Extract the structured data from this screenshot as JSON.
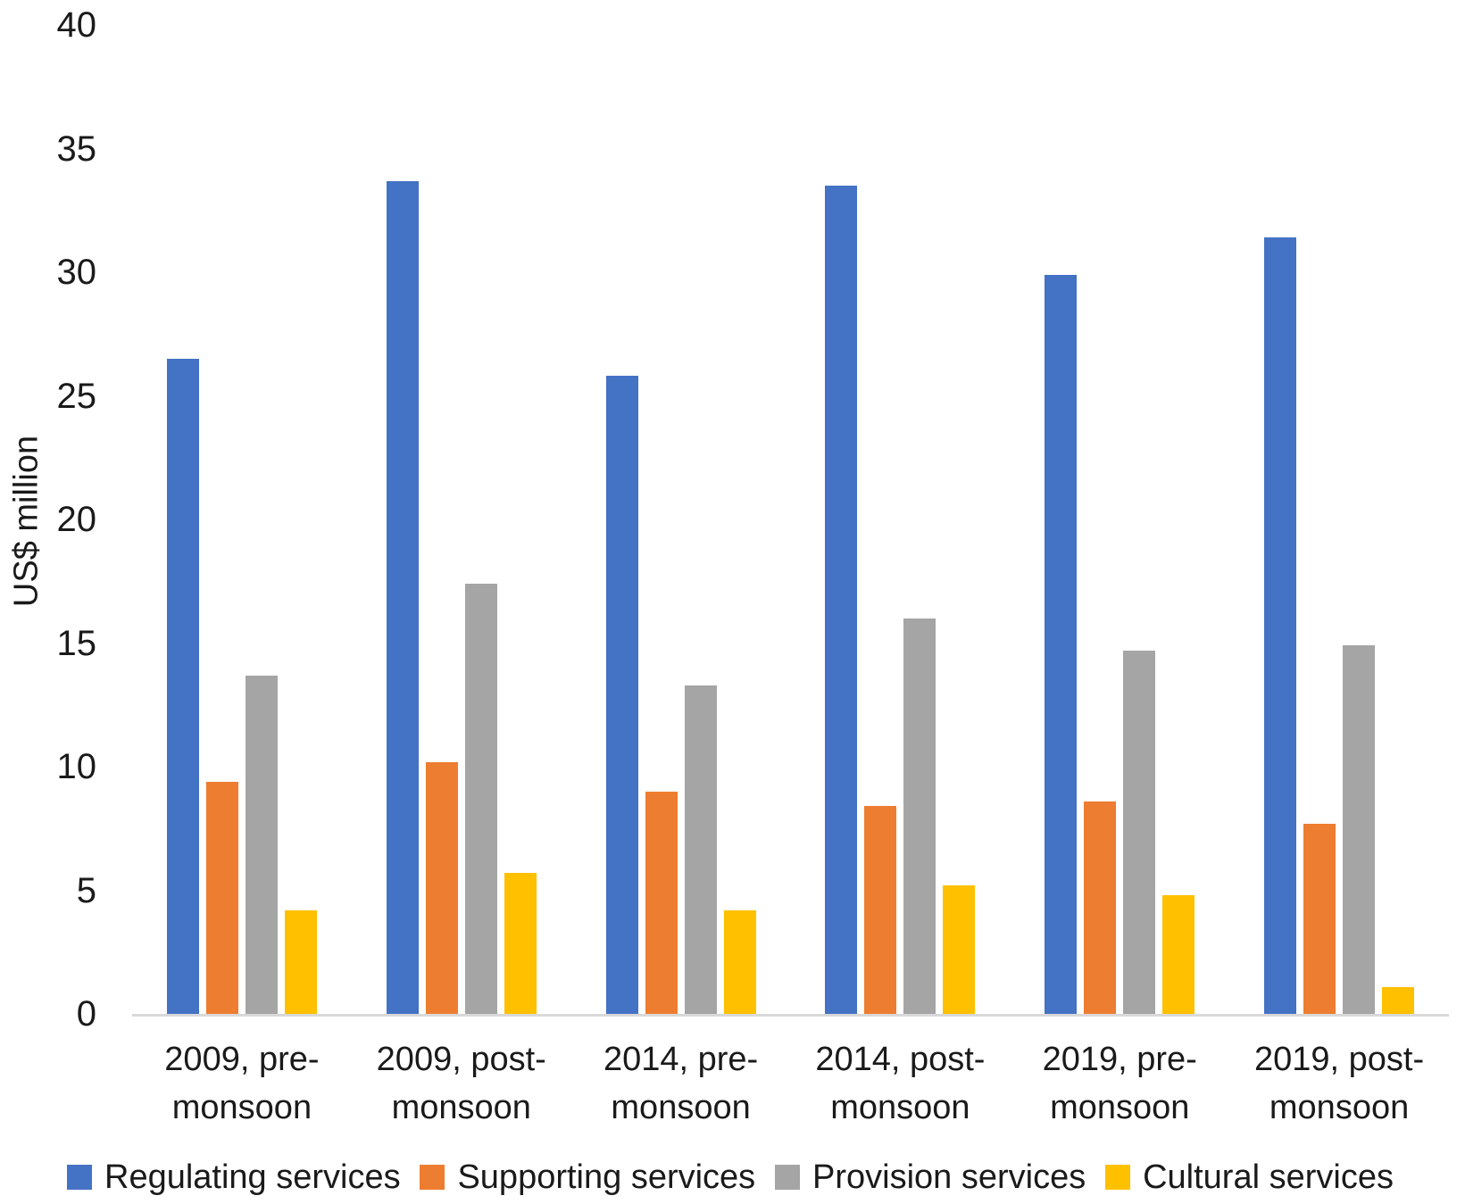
{
  "chart_data": {
    "type": "bar",
    "title": "",
    "ylabel": "US$ million",
    "xlabel": "",
    "ylim": [
      0,
      40
    ],
    "yticks": [
      0,
      5,
      10,
      15,
      20,
      25,
      30,
      35,
      40
    ],
    "grid": false,
    "legend_position": "bottom",
    "background_color": "#FFFFFF",
    "axis_line_color": "#D9D9D9",
    "text_color": "#1A1A1A",
    "categories": [
      "2009, pre-monsoon",
      "2009, post-monsoon",
      "2014, pre-monsoon",
      "2014, post-monsoon",
      "2019, pre-monsoon",
      "2019, post-monsoon"
    ],
    "category_label_lines": [
      [
        "2009, pre-",
        "monsoon"
      ],
      [
        "2009, post-",
        "monsoon"
      ],
      [
        "2014, pre-",
        "monsoon"
      ],
      [
        "2014, post-",
        "monsoon"
      ],
      [
        "2019, pre-",
        "monsoon"
      ],
      [
        "2019, post-",
        "monsoon"
      ]
    ],
    "series": [
      {
        "name": "Regulating services",
        "color": "#4472C4",
        "values": [
          26.5,
          33.7,
          25.8,
          33.5,
          29.9,
          31.4
        ]
      },
      {
        "name": "Supporting services",
        "color": "#ED7D31",
        "values": [
          9.4,
          10.2,
          9.0,
          8.4,
          8.6,
          7.7
        ]
      },
      {
        "name": "Provision services",
        "color": "#A5A5A5",
        "values": [
          13.7,
          17.4,
          13.3,
          16.0,
          14.7,
          14.9
        ]
      },
      {
        "name": "Cultural services",
        "color": "#FFC000",
        "values": [
          4.2,
          5.7,
          4.2,
          5.2,
          4.8,
          1.1
        ]
      }
    ]
  }
}
